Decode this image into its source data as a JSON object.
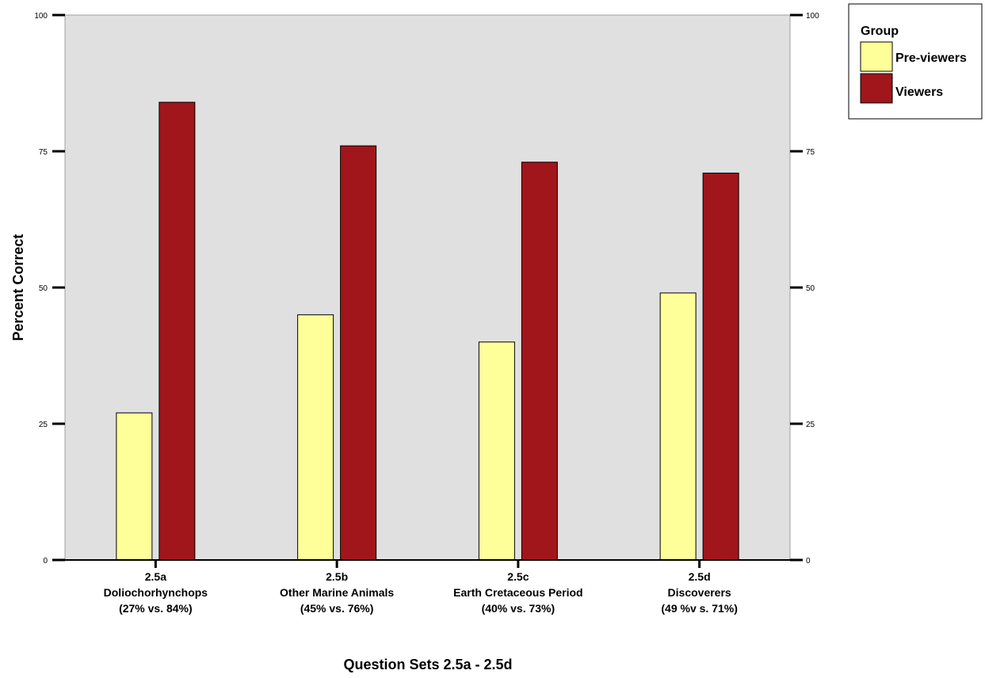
{
  "chart_data": {
    "type": "bar",
    "xlabel": "Question Sets 2.5a - 2.5d",
    "ylabel": "Percent Correct",
    "ylim": [
      0,
      100
    ],
    "yticks": [
      0,
      25,
      50,
      75,
      100
    ],
    "y_axis_mirrored_right": true,
    "grid": false,
    "legend_position": "top-right, outside plot",
    "legend_title": "Group",
    "categories": [
      [
        "2.5a",
        "Doliochorhynchops",
        "(27% vs. 84%)"
      ],
      [
        "2.5b",
        "Other Marine Animals",
        "(45% vs. 76%)"
      ],
      [
        "2.5c",
        "Earth Cretaceous Period",
        "(40% vs. 73%)"
      ],
      [
        "2.5d",
        "Discoverers",
        "(49 %v s. 71%)"
      ]
    ],
    "series": [
      {
        "name": "Pre-viewers",
        "color": "#ffff99",
        "values": [
          27,
          45,
          40,
          49
        ]
      },
      {
        "name": "Viewers",
        "color": "#a0161a",
        "values": [
          84,
          76,
          73,
          71
        ]
      }
    ],
    "plot_background": "#e0e0e0"
  }
}
